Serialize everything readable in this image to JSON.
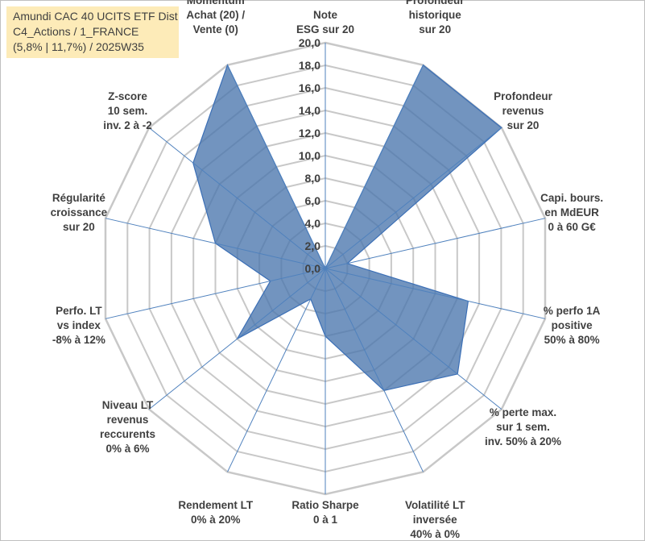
{
  "title": {
    "line1": "Amundi CAC 40 UCITS ETF Dist",
    "line2": "C4_Actions / 1_FRANCE",
    "line3": "(5,8% | 11,7%) / 2025W35"
  },
  "colors": {
    "fill": "#4a76ad",
    "stroke": "#3b6fb6",
    "grid": "#c8c8c8",
    "spoke": "#4f81bd",
    "text": "#404040",
    "title_bg": "#fdebb8"
  },
  "chart_data": {
    "type": "radar",
    "rlim": [
      0,
      20
    ],
    "tick_step": 2,
    "tick_labels": [
      "0,0",
      "2,0",
      "4,0",
      "6,0",
      "8,0",
      "10,0",
      "12,0",
      "14,0",
      "16,0",
      "18,0",
      "20,0"
    ],
    "grid": true,
    "axes": [
      [
        "Note",
        "ESG sur 20"
      ],
      [
        "Profondeur",
        "historique",
        "sur 20"
      ],
      [
        "Profondeur",
        "revenus",
        "sur 20"
      ],
      [
        "Capi. bours.",
        "en MdEUR",
        "0 à 60 G€"
      ],
      [
        "% perfo 1A",
        "positive",
        "50% à 80%"
      ],
      [
        "% perte max.",
        "sur 1 sem.",
        "inv. 50% à 20%"
      ],
      [
        "Volatilité LT",
        "inversée",
        "40% à 0%"
      ],
      [
        "Ratio Sharpe",
        "0 à 1"
      ],
      [
        "Rendement LT",
        "0% à 20%"
      ],
      [
        "Niveau LT",
        "revenus",
        "reccurents",
        "0% à 6%"
      ],
      [
        "Perfo. LT",
        "vs index",
        "-8% à 12%"
      ],
      [
        "Régularité",
        "croissance",
        "sur 20"
      ],
      [
        "Z-score",
        "10 sem.",
        "inv. 2 à -2"
      ],
      [
        "Momentum",
        "Achat (20) /",
        "Vente (0)"
      ]
    ],
    "values": [
      0,
      20,
      20,
      2,
      13,
      15,
      12,
      6,
      3,
      10,
      5,
      10,
      15,
      20
    ]
  }
}
